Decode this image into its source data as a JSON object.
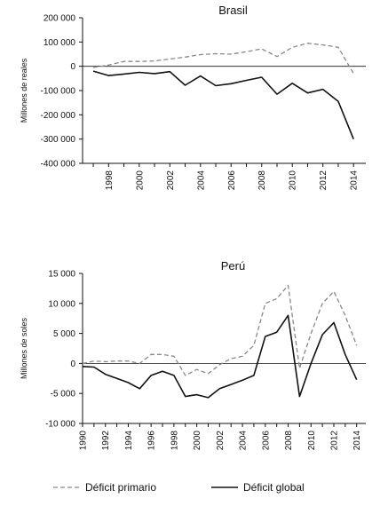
{
  "chart_data": [
    {
      "type": "line",
      "title": "Brasil",
      "ylabel": "Millones de reales",
      "xlabel": "",
      "x": [
        1997,
        1998,
        1999,
        2000,
        2001,
        2002,
        2003,
        2004,
        2005,
        2006,
        2007,
        2008,
        2009,
        2010,
        2011,
        2012,
        2013,
        2014
      ],
      "x_ticks": [
        "1998",
        "2000",
        "2002",
        "2004",
        "2006",
        "2008",
        "2010",
        "2012",
        "2014"
      ],
      "y_ticks": [
        "200 000",
        "100 000",
        "0",
        "-100 000",
        "-200 000",
        "-300 000",
        "-400 000"
      ],
      "ylim": [
        -400000,
        200000
      ],
      "series": [
        {
          "name": "Déficit primario",
          "style": "dashed",
          "color": "#888888",
          "values": [
            -5000,
            5000,
            20000,
            20000,
            22000,
            30000,
            38000,
            48000,
            52000,
            50000,
            60000,
            72000,
            40000,
            78000,
            95000,
            88000,
            78000,
            -30000
          ]
        },
        {
          "name": "Déficit global",
          "style": "solid",
          "color": "#111111",
          "values": [
            -20000,
            -38000,
            -32000,
            -25000,
            -30000,
            -22000,
            -78000,
            -40000,
            -80000,
            -72000,
            -58000,
            -45000,
            -115000,
            -70000,
            -110000,
            -95000,
            -145000,
            -300000
          ]
        }
      ]
    },
    {
      "type": "line",
      "title": "Perú",
      "ylabel": "Millones de soles",
      "xlabel": "",
      "x": [
        1990,
        1991,
        1992,
        1993,
        1994,
        1995,
        1996,
        1997,
        1998,
        1999,
        2000,
        2001,
        2002,
        2003,
        2004,
        2005,
        2006,
        2007,
        2008,
        2009,
        2010,
        2011,
        2012,
        2013,
        2014
      ],
      "x_ticks": [
        "1990",
        "1992",
        "1994",
        "1996",
        "1998",
        "2000",
        "2002",
        "2004",
        "2006",
        "2008",
        "2010",
        "2012",
        "2014"
      ],
      "y_ticks": [
        "15 000",
        "10 000",
        "5 000",
        "0",
        "-5 000",
        "-10 000"
      ],
      "ylim": [
        -10000,
        15000
      ],
      "series": [
        {
          "name": "Déficit primario",
          "style": "dashed",
          "color": "#888888",
          "values": [
            0,
            400,
            300,
            400,
            400,
            0,
            1500,
            1500,
            1200,
            -2000,
            -1000,
            -1700,
            -200,
            800,
            1200,
            3000,
            10000,
            10800,
            13000,
            -800,
            5000,
            10000,
            12000,
            8000,
            3000
          ]
        },
        {
          "name": "Déficit global",
          "style": "solid",
          "color": "#111111",
          "values": [
            -500,
            -600,
            -1800,
            -2500,
            -3200,
            -4200,
            -2000,
            -1300,
            -2000,
            -5500,
            -5200,
            -5700,
            -4200,
            -3500,
            -2800,
            -2000,
            4500,
            5200,
            8000,
            -5500,
            0,
            4800,
            6800,
            1500,
            -2700
          ]
        }
      ]
    }
  ],
  "legend": {
    "primario": "Déficit primario",
    "global": "Déficit global"
  }
}
